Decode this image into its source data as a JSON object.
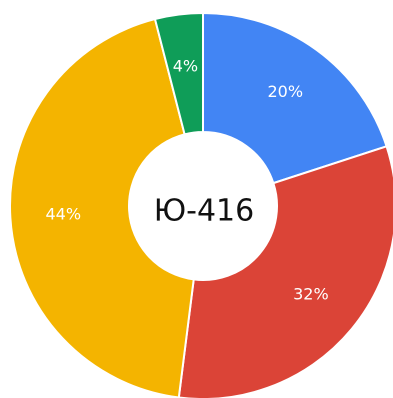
{
  "chart_data": {
    "type": "pie",
    "center_label": "Ю-416",
    "slices": [
      {
        "label": "20%",
        "value": 20,
        "color": "#4285F4"
      },
      {
        "label": "32%",
        "value": 32,
        "color": "#DB4437"
      },
      {
        "label": "44%",
        "value": 44,
        "color": "#F4B400"
      },
      {
        "label": "4%",
        "value": 4,
        "color": "#0F9D58"
      }
    ]
  }
}
